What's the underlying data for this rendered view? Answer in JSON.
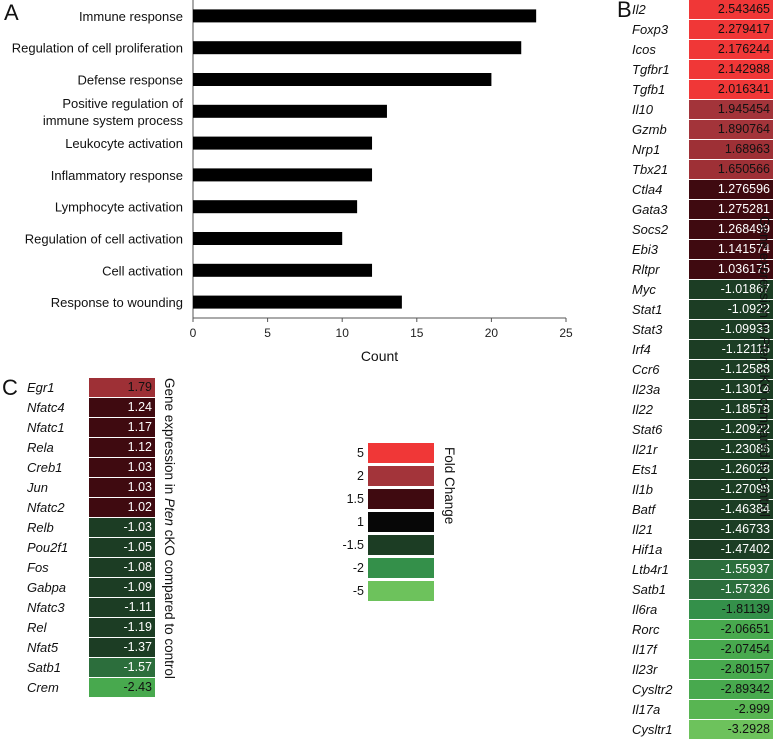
{
  "panels": {
    "a": "A",
    "b": "B",
    "c": "C"
  },
  "chart_data": [
    {
      "type": "bar",
      "orientation": "horizontal",
      "title": "",
      "xlabel": "Count",
      "ylabel": "",
      "xlim": [
        0,
        25
      ],
      "xticks": [
        "0",
        "5",
        "10",
        "15",
        "20",
        "25"
      ],
      "categories": [
        "Immune response",
        "Regulation of cell proliferation",
        "Defense response",
        "Positive regulation of immune system process",
        "Leukocyte activation",
        "Inflammatory response",
        "Lymphocyte activation",
        "Regulation of cell activation",
        "Cell activation",
        "Response to wounding"
      ],
      "category_lines": [
        [
          "Immune response"
        ],
        [
          "Regulation of cell proliferation"
        ],
        [
          "Defense response"
        ],
        [
          "Positive regulation of",
          "immune system process"
        ],
        [
          "Leukocyte activation"
        ],
        [
          "Inflammatory response"
        ],
        [
          "Lymphocyte activation"
        ],
        [
          "Regulation of cell activation"
        ],
        [
          "Cell activation"
        ],
        [
          "Response to wounding"
        ]
      ],
      "values": [
        23,
        22,
        20,
        13,
        12,
        12,
        11,
        10,
        12,
        14
      ],
      "color": "#000000"
    },
    {
      "type": "heatmap",
      "panel": "B",
      "axis_label_pre": "Gene expression in ",
      "axis_label_italic": "Pten",
      "axis_label_post": " cKO compared to control",
      "genes": [
        "Il2",
        "Foxp3",
        "Icos",
        "Tgfbr1",
        "Tgfb1",
        "Il10",
        "Gzmb",
        "Nrp1",
        "Tbx21",
        "Ctla4",
        "Gata3",
        "Socs2",
        "Ebi3",
        "Rltpr",
        "Myc",
        "Stat1",
        "Stat3",
        "Irf4",
        "Ccr6",
        "Il23a",
        "Il22",
        "Stat6",
        "Il21r",
        "Ets1",
        "Il1b",
        "Batf",
        "Il21",
        "Hif1a",
        "Ltb4r1",
        "Satb1",
        "Il6ra",
        "Rorc",
        "Il17f",
        "Il23r",
        "Cysltr2",
        "Il17a",
        "Cysltr1"
      ],
      "values": [
        "2.543465",
        "2.279417",
        "2.176244",
        "2.142988",
        "2.016341",
        "1.945454",
        "1.890764",
        "1.68963",
        "1.650566",
        "1.276596",
        "1.275281",
        "1.268499",
        "1.141574",
        "1.036175",
        "-1.01867",
        "-1.0922",
        "-1.09933",
        "-1.12115",
        "-1.12588",
        "-1.13014",
        "-1.18578",
        "-1.20922",
        "-1.23086",
        "-1.26028",
        "-1.27098",
        "-1.46384",
        "-1.46733",
        "-1.47402",
        "-1.55937",
        "-1.57326",
        "-1.81139",
        "-2.06651",
        "-2.07454",
        "-2.80157",
        "-2.89342",
        "-2.999",
        "-3.2928"
      ]
    },
    {
      "type": "heatmap",
      "panel": "C",
      "axis_label_pre": "Gene expression in ",
      "axis_label_italic": "Pten",
      "axis_label_post": " cKO compared to control",
      "genes": [
        "Egr1",
        "Nfatc4",
        "Nfatc1",
        "Rela",
        "Creb1",
        "Jun",
        "Nfatc2",
        "Relb",
        "Pou2f1",
        "Fos",
        "Gabpa",
        "Nfatc3",
        "Rel",
        "Nfat5",
        "Satb1",
        "Crem"
      ],
      "values": [
        "1.79",
        "1.24",
        "1.17",
        "1.12",
        "1.03",
        "1.03",
        "1.02",
        "-1.03",
        "-1.05",
        "-1.08",
        "-1.09",
        "-1.11",
        "-1.19",
        "-1.37",
        "-1.57",
        "-2.43"
      ]
    }
  ],
  "legend": {
    "title": "Fold Change",
    "entries": [
      {
        "label": "5",
        "color": "#f03737"
      },
      {
        "label": "2",
        "color": "#a3343a"
      },
      {
        "label": "1.5",
        "color": "#3f0a10"
      },
      {
        "label": "1",
        "color": "#070707"
      },
      {
        "label": "-1.5",
        "color": "#1c3d24"
      },
      {
        "label": "-2",
        "color": "#34904a"
      },
      {
        "label": "-5",
        "color": "#6dc25c"
      }
    ]
  }
}
